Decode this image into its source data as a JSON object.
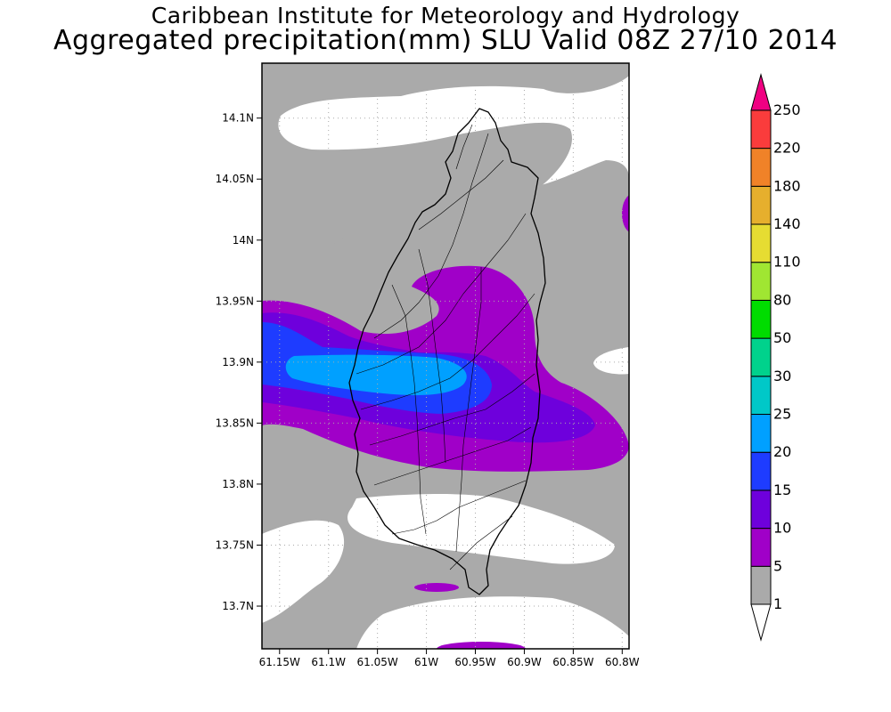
{
  "title_line1": "Caribbean Institute for Meteorology and Hydrology",
  "title_line2": "Aggregated precipitation(mm) SLU Valid 08Z 27/10 2014",
  "chart_data": {
    "type": "heatmap",
    "title": "Aggregated precipitation(mm) SLU Valid 08Z 27/10 2014",
    "xlabel": "",
    "ylabel": "",
    "x_ticks": [
      "61.15W",
      "61.1W",
      "61.05W",
      "61W",
      "60.95W",
      "60.9W",
      "60.85W",
      "60.8W"
    ],
    "x_tick_values": [
      -61.15,
      -61.1,
      -61.05,
      -61.0,
      -60.95,
      -60.9,
      -60.85,
      -60.8
    ],
    "y_ticks": [
      "14.1N",
      "14.05N",
      "14N",
      "13.95N",
      "13.9N",
      "13.85N",
      "13.8N",
      "13.75N",
      "13.7N"
    ],
    "y_tick_values": [
      14.1,
      14.05,
      14.0,
      13.95,
      13.9,
      13.85,
      13.8,
      13.75,
      13.7
    ],
    "xlim": [
      -61.168,
      -60.793
    ],
    "ylim": [
      13.665,
      14.145
    ],
    "grid": true,
    "units": "mm",
    "colorbar": {
      "placement": "right",
      "levels": [
        1,
        5,
        10,
        15,
        20,
        25,
        30,
        50,
        80,
        110,
        140,
        180,
        220,
        250
      ],
      "colors": [
        "#aaaaaa",
        "#a000c8",
        "#6e00dc",
        "#1e3cff",
        "#00a0ff",
        "#00c8c8",
        "#00d28c",
        "#00dc00",
        "#a0e632",
        "#e6dc32",
        "#e6af2d",
        "#f08228",
        "#fa3c3c",
        "#f00082"
      ],
      "below_color": "#ffffff"
    },
    "regions": [
      {
        "band": "1-5",
        "approx": "broad grey bands across the north, centre and south; white gaps over the north and south of the island"
      },
      {
        "band": "5-10",
        "approx": "purple zone from about 61.17W to 60.84W between 13.81N and 13.98N"
      },
      {
        "band": "10-15",
        "approx": "darker purple core around 13.85N-13.93N"
      },
      {
        "band": "15-20",
        "approx": "blue band west side about 13.86N-13.92N"
      },
      {
        "band": "20-25",
        "approx": "light blue core 61.15W-60.96W near 13.87N-13.90N"
      }
    ]
  }
}
